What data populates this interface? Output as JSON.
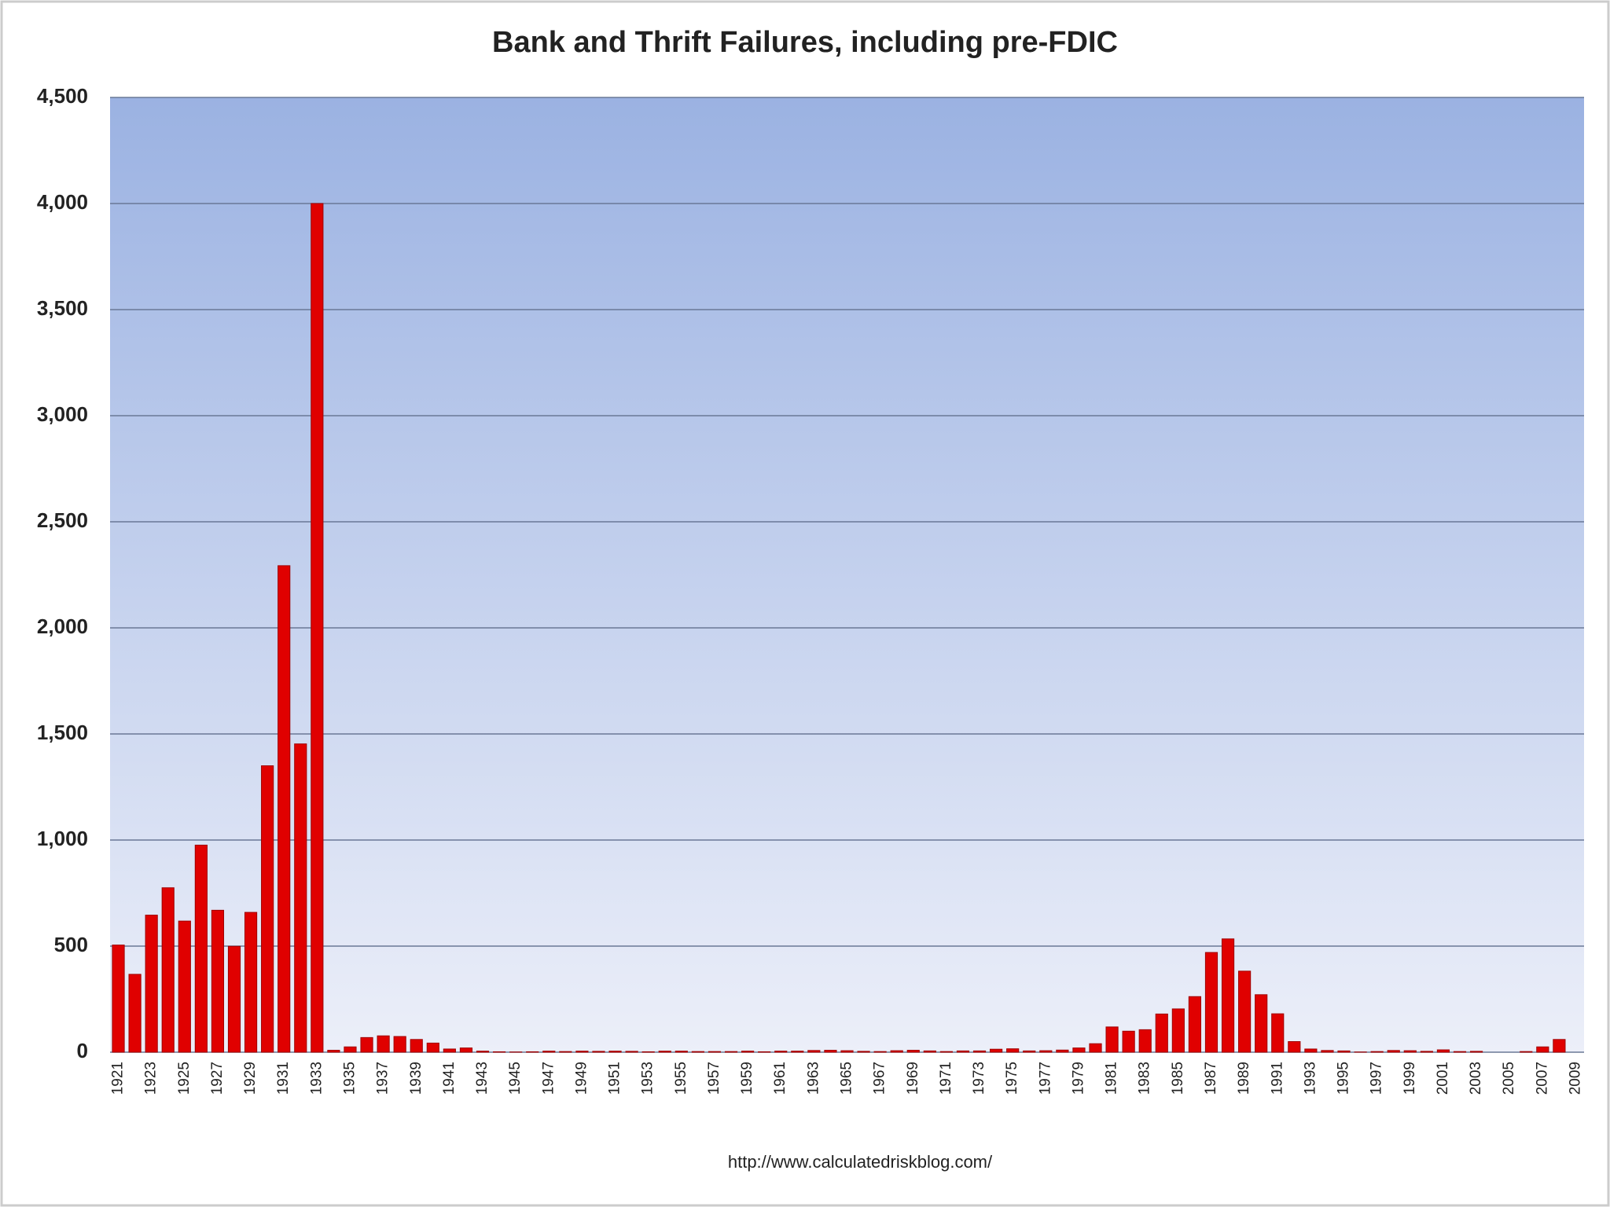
{
  "chart_data": {
    "type": "bar",
    "title": "Bank and Thrift Failures, including pre-FDIC",
    "source": "http://www.calculatedriskblog.com/",
    "categories": [
      "1921",
      null,
      "1923",
      null,
      "1925",
      null,
      "1927",
      null,
      "1929",
      null,
      "1931",
      null,
      "1933",
      null,
      "1935",
      null,
      "1937",
      null,
      "1939",
      null,
      "1941",
      null,
      "1943",
      null,
      "1945",
      null,
      "1947",
      null,
      "1949",
      null,
      "1951",
      null,
      "1953",
      null,
      "1955",
      null,
      "1957",
      null,
      "1959",
      null,
      "1961",
      null,
      "1963",
      null,
      "1965",
      null,
      "1967",
      null,
      "1969",
      null,
      "1971",
      null,
      "1973",
      null,
      "1975",
      null,
      "1977",
      null,
      "1979",
      null,
      "1981",
      null,
      "1983",
      null,
      "1985",
      null,
      "1987",
      null,
      "1989",
      null,
      "1991",
      null,
      "1993",
      null,
      "1995",
      null,
      "1997",
      null,
      "1999",
      null,
      "2001",
      null,
      "2003",
      null,
      "2005",
      null,
      "2007",
      null,
      "2009"
    ],
    "values": [
      505,
      367,
      646,
      775,
      618,
      976,
      669,
      499,
      659,
      1350,
      2293,
      1453,
      4000,
      9,
      25,
      69,
      77,
      74,
      60,
      43,
      15,
      20,
      5,
      2,
      1,
      2,
      5,
      3,
      5,
      4,
      5,
      4,
      2,
      5,
      5,
      3,
      3,
      3,
      5,
      2,
      5,
      5,
      8,
      9,
      7,
      4,
      3,
      7,
      9,
      6,
      3,
      6,
      6,
      14,
      16,
      6,
      7,
      10,
      20,
      40,
      119,
      99,
      106,
      180,
      204,
      262,
      470,
      534,
      382,
      271,
      181,
      50,
      15,
      8,
      6,
      1,
      3,
      8,
      7,
      4,
      11,
      3,
      4,
      0,
      0,
      3,
      25,
      60,
      0
    ],
    "color": "#e00000",
    "ylim": [
      0,
      4500
    ],
    "yticks": [
      0,
      500,
      {
        "value": 1000,
        "label": "1,000"
      },
      {
        "value": 1500,
        "label": "1,500"
      },
      {
        "value": 2000,
        "label": "2,000"
      },
      {
        "value": 2500,
        "label": "2,500"
      },
      {
        "value": 3000,
        "label": "3,000"
      },
      {
        "value": 3500,
        "label": "3,500"
      },
      {
        "value": 4000,
        "label": "4,000"
      },
      {
        "value": 4500,
        "label": "4,500"
      }
    ],
    "grid": true
  }
}
